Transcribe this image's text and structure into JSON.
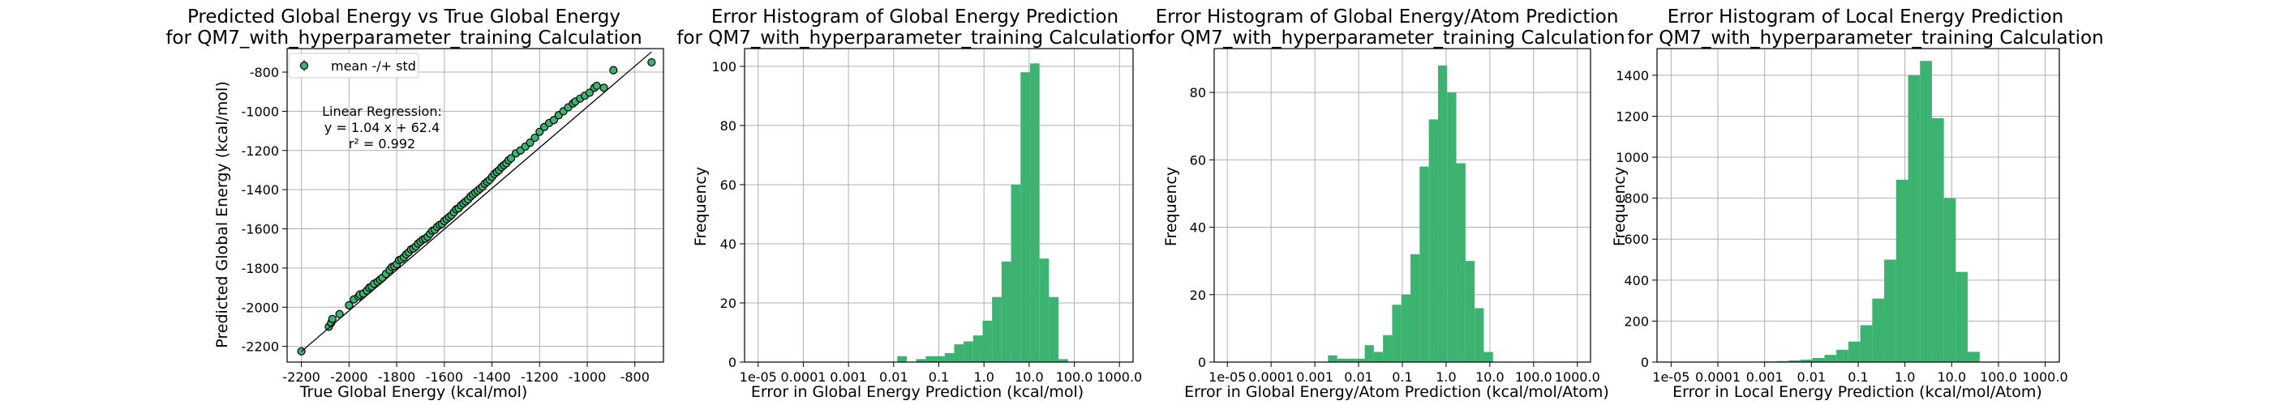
{
  "chart_data": [
    {
      "type": "scatter",
      "title": "Predicted Global Energy vs True Global Energy",
      "subtitle": "for QM7_with_hyperparameter_training Calculation",
      "xlabel": "True Global Energy (kcal/mol)",
      "ylabel": "Predicted Global Energy (kcal/mol)",
      "xlim": [
        -2260,
        -680
      ],
      "ylim": [
        -2280,
        -680
      ],
      "xticks": [
        -2200,
        -2000,
        -1800,
        -1600,
        -1400,
        -1200,
        -1000,
        -800
      ],
      "yticks": [
        -2200,
        -2000,
        -1800,
        -1600,
        -1400,
        -1200,
        -1000,
        -800
      ],
      "grid": true,
      "legend": {
        "position": "top-left",
        "label": "mean -/+ std"
      },
      "annotation": [
        "Linear Regression:",
        "y = 1.04 x + 62.4",
        "r² = 0.992"
      ],
      "fit_line": {
        "slope": 1.04,
        "intercept": 62.4
      },
      "marker_color": "#3cb371",
      "x": [
        -2200,
        -2085,
        -2075,
        -2070,
        -2040,
        -2000,
        -1980,
        -1960,
        -1955,
        -1940,
        -1925,
        -1915,
        -1905,
        -1895,
        -1880,
        -1870,
        -1860,
        -1845,
        -1830,
        -1820,
        -1810,
        -1800,
        -1790,
        -1780,
        -1770,
        -1760,
        -1750,
        -1740,
        -1730,
        -1720,
        -1710,
        -1700,
        -1690,
        -1680,
        -1670,
        -1660,
        -1650,
        -1640,
        -1630,
        -1620,
        -1610,
        -1600,
        -1590,
        -1580,
        -1570,
        -1560,
        -1550,
        -1540,
        -1530,
        -1520,
        -1510,
        -1500,
        -1490,
        -1480,
        -1470,
        -1460,
        -1450,
        -1440,
        -1430,
        -1420,
        -1410,
        -1400,
        -1390,
        -1380,
        -1370,
        -1360,
        -1350,
        -1340,
        -1330,
        -1320,
        -1300,
        -1280,
        -1260,
        -1240,
        -1220,
        -1200,
        -1180,
        -1160,
        -1140,
        -1120,
        -1100,
        -1080,
        -1060,
        -1050,
        -1030,
        -1010,
        -990,
        -970,
        -960,
        -930,
        -890,
        -730
      ],
      "y": [
        -2225,
        -2100,
        -2080,
        -2060,
        -2035,
        -1990,
        -1960,
        -1945,
        -1935,
        -1930,
        -1915,
        -1900,
        -1895,
        -1880,
        -1870,
        -1860,
        -1850,
        -1830,
        -1810,
        -1795,
        -1790,
        -1780,
        -1760,
        -1755,
        -1745,
        -1730,
        -1720,
        -1705,
        -1700,
        -1690,
        -1675,
        -1665,
        -1655,
        -1650,
        -1640,
        -1625,
        -1610,
        -1605,
        -1590,
        -1580,
        -1575,
        -1560,
        -1550,
        -1540,
        -1530,
        -1515,
        -1500,
        -1495,
        -1480,
        -1470,
        -1460,
        -1450,
        -1435,
        -1425,
        -1415,
        -1405,
        -1395,
        -1385,
        -1370,
        -1360,
        -1350,
        -1335,
        -1320,
        -1310,
        -1300,
        -1285,
        -1275,
        -1265,
        -1250,
        -1240,
        -1215,
        -1200,
        -1180,
        -1160,
        -1135,
        -1105,
        -1080,
        -1060,
        -1045,
        -1020,
        -1000,
        -980,
        -960,
        -950,
        -935,
        -920,
        -905,
        -880,
        -870,
        -880,
        -790,
        -750
      ]
    },
    {
      "type": "bar",
      "title": "Error Histogram of Global Energy Prediction",
      "subtitle": "for QM7_with_hyperparameter_training Calculation",
      "xlabel": "Error in Global Energy Prediction (kcal/mol)",
      "ylabel": "Frequency",
      "xscale": "log",
      "xlim": [
        5e-06,
        2000
      ],
      "ylim": [
        0,
        106
      ],
      "xtick_values": [
        1e-05,
        0.0001,
        0.001,
        0.01,
        0.1,
        1,
        10,
        100,
        1000
      ],
      "xtick_labels": [
        "1e-05",
        "0.0001",
        "0.001",
        "0.01",
        "0.1",
        "1.0",
        "10.0",
        "100.0",
        "1000.0"
      ],
      "yticks": [
        0,
        20,
        40,
        60,
        80,
        100
      ],
      "grid": true,
      "bar_color": "#3cb371",
      "bin_edges": [
        0.012,
        0.0195,
        0.0316,
        0.0513,
        0.0832,
        0.135,
        0.219,
        0.355,
        0.575,
        0.933,
        1.51,
        2.45,
        3.98,
        6.46,
        10.5,
        17.0,
        27.5,
        44.7,
        72.4,
        117.5
      ],
      "values": [
        2,
        0,
        1,
        2,
        2,
        3,
        6,
        7,
        9,
        14,
        22,
        34,
        60,
        98,
        101,
        35,
        22,
        1,
        0
      ]
    },
    {
      "type": "bar",
      "title": "Error Histogram of Global Energy/Atom Prediction",
      "subtitle": "for QM7_with_hyperparameter_training Calculation",
      "xlabel": "Error in Global Energy/Atom Prediction (kcal/mol/Atom)",
      "ylabel": "Frequency",
      "xscale": "log",
      "xlim": [
        5e-06,
        2000
      ],
      "ylim": [
        0,
        93
      ],
      "xtick_values": [
        1e-05,
        0.0001,
        0.001,
        0.01,
        0.1,
        1,
        10,
        100,
        1000
      ],
      "xtick_labels": [
        "1e-05",
        "0.0001",
        "0.001",
        "0.01",
        "0.1",
        "1.0",
        "10.0",
        "100.0",
        "1000.0"
      ],
      "yticks": [
        0,
        20,
        40,
        60,
        80
      ],
      "grid": true,
      "bar_color": "#3cb371",
      "bin_edges": [
        0.002,
        0.00324,
        0.00525,
        0.0085,
        0.0138,
        0.0223,
        0.0361,
        0.0585,
        0.0948,
        0.1535,
        0.2487,
        0.403,
        0.653,
        1.058,
        1.713,
        2.776,
        4.5,
        7.29,
        11.8,
        19.1
      ],
      "values": [
        2,
        1,
        1,
        1,
        5,
        3,
        8,
        17,
        20,
        32,
        58,
        72,
        88,
        80,
        59,
        30,
        16,
        3,
        0
      ]
    },
    {
      "type": "bar",
      "title": "Error Histogram of Local Energy Prediction",
      "subtitle": "for QM7_with_hyperparameter_training Calculation",
      "xlabel": "Error in Local Energy Prediction (kcal/mol/Atom)",
      "ylabel": "Frequency",
      "xscale": "log",
      "xlim": [
        5e-06,
        2000
      ],
      "ylim": [
        0,
        1530
      ],
      "xtick_values": [
        1e-05,
        0.0001,
        0.001,
        0.01,
        0.1,
        1,
        10,
        100,
        1000
      ],
      "xtick_labels": [
        "1e-05",
        "0.0001",
        "0.001",
        "0.01",
        "0.1",
        "1.0",
        "10.0",
        "100.0",
        "1000.0"
      ],
      "yticks": [
        0,
        200,
        400,
        600,
        800,
        1000,
        1200,
        1400
      ],
      "grid": true,
      "bar_color": "#3cb371",
      "bin_edges": [
        0.001,
        0.0018,
        0.00325,
        0.00585,
        0.0105,
        0.019,
        0.0342,
        0.0616,
        0.111,
        0.2,
        0.36,
        0.648,
        1.167,
        2.1,
        3.78,
        6.8,
        12.25,
        22.0,
        39.7
      ],
      "values": [
        3,
        5,
        8,
        12,
        20,
        35,
        60,
        100,
        180,
        310,
        500,
        890,
        1400,
        1470,
        1190,
        800,
        440,
        50
      ]
    }
  ]
}
